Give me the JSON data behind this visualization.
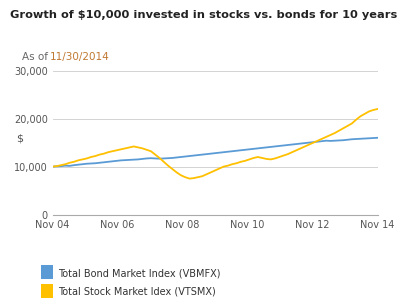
{
  "title": "Growth of $10,000 invested in stocks vs. bonds for 10 years",
  "subtitle_prefix": "As of ",
  "subtitle_date": "11/30/2014",
  "subtitle_date_color": "#c07830",
  "subtitle_prefix_color": "#666666",
  "ylabel": "$",
  "ylim": [
    0,
    30000
  ],
  "yticks": [
    0,
    10000,
    20000,
    30000
  ],
  "ytick_labels": [
    "0",
    "10,000",
    "20,000",
    "30,000"
  ],
  "xtick_labels": [
    "Nov 04",
    "Nov 06",
    "Nov 08",
    "Nov 10",
    "Nov 12",
    "Nov 14"
  ],
  "background_color": "#ffffff",
  "grid_color": "#cccccc",
  "bond_color": "#5b9bd5",
  "stock_color": "#ffc000",
  "legend_bond": "Total Bond Market Index (VBMFX)",
  "legend_stock": "Total Stock Market Idex (VTSMX)",
  "bond_data": [
    10000,
    10050,
    10100,
    10200,
    10150,
    10300,
    10400,
    10500,
    10600,
    10650,
    10700,
    10800,
    10900,
    11000,
    11100,
    11200,
    11300,
    11350,
    11400,
    11450,
    11500,
    11600,
    11700,
    11750,
    11700,
    11650,
    11700,
    11750,
    11800,
    11900,
    12000,
    12100,
    12200,
    12300,
    12400,
    12500,
    12600,
    12700,
    12800,
    12900,
    13000,
    13100,
    13200,
    13300,
    13400,
    13500,
    13600,
    13700,
    13800,
    13900,
    14000,
    14100,
    14200,
    14300,
    14400,
    14500,
    14600,
    14700,
    14800,
    14900,
    15000,
    15100,
    15200,
    15300,
    15400,
    15350,
    15400,
    15450,
    15500,
    15600,
    15700,
    15750,
    15800,
    15850,
    15900,
    15950,
    16000
  ],
  "stock_data": [
    10000,
    10100,
    10300,
    10500,
    10800,
    11000,
    11300,
    11500,
    11700,
    12000,
    12200,
    12500,
    12700,
    13000,
    13200,
    13400,
    13600,
    13800,
    14000,
    14200,
    14000,
    13800,
    13500,
    13200,
    12500,
    11800,
    11000,
    10200,
    9500,
    8800,
    8200,
    7800,
    7500,
    7600,
    7800,
    8000,
    8400,
    8800,
    9200,
    9600,
    10000,
    10200,
    10500,
    10700,
    11000,
    11200,
    11500,
    11800,
    12000,
    11800,
    11600,
    11500,
    11700,
    12000,
    12300,
    12600,
    13000,
    13400,
    13800,
    14200,
    14600,
    15000,
    15400,
    15800,
    16200,
    16600,
    17000,
    17500,
    18000,
    18500,
    19000,
    19800,
    20500,
    21000,
    21500,
    21800,
    22000
  ]
}
